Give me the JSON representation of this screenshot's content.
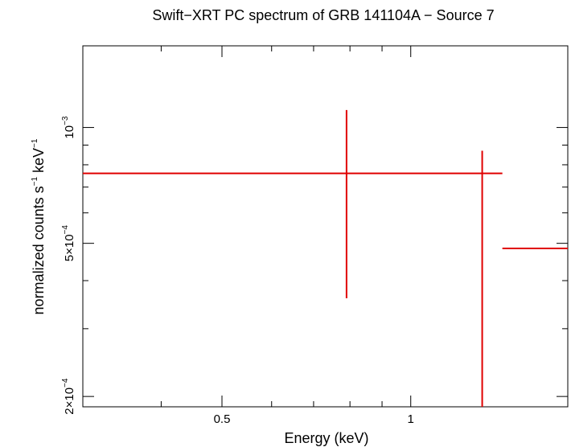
{
  "chart_data": {
    "type": "scatter",
    "title": "Swift−XRT PC spectrum of GRB 141104A − Source 7",
    "xlabel": "Energy (keV)",
    "ylabel_main": "normalized counts s",
    "ylabel_sup1": "−1",
    "ylabel_mid": " keV",
    "ylabel_sup2": "−1",
    "x_scale": "log",
    "y_scale": "log",
    "xlim": [
      0.3,
      1.78
    ],
    "ylim": [
      0.000188,
      0.00163
    ],
    "x_ticks": [
      {
        "value": 0.5,
        "label": "0.5"
      },
      {
        "value": 1,
        "label": "1"
      }
    ],
    "y_ticks": [
      {
        "value": 0.001,
        "mantissa": "",
        "base": "10",
        "exp": "−3"
      },
      {
        "value": 0.0005,
        "mantissa": "5×",
        "base": "10",
        "exp": "−4"
      },
      {
        "value": 0.0002,
        "mantissa": "2×",
        "base": "10",
        "exp": "−4"
      }
    ],
    "series": [
      {
        "color": "#e00000",
        "points": [
          {
            "x": 0.79,
            "y": 0.00076,
            "xerr": [
              0.3,
              1.4
            ],
            "yerr": [
              0.00036,
              0.00111
            ]
          },
          {
            "x": 1.3,
            "y": 0.000485,
            "xerr": [
              1.4,
              1.78
            ],
            "yerr": [
              0.000188,
              0.00087
            ]
          }
        ]
      }
    ]
  }
}
